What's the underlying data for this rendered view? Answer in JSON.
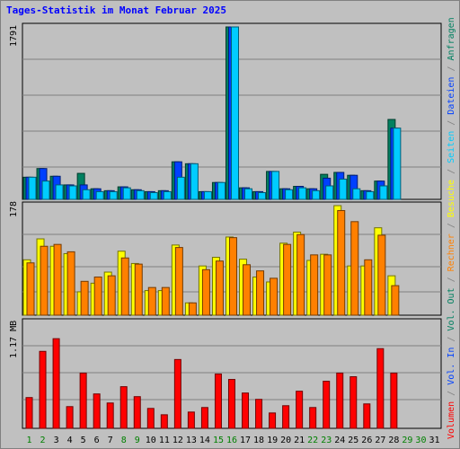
{
  "chart_data": [
    {
      "type": "bar",
      "title": "Tages-Statistik im Monat Februar 2025",
      "categories": [
        "1",
        "2",
        "3",
        "4",
        "5",
        "6",
        "7",
        "8",
        "9",
        "10",
        "11",
        "12",
        "13",
        "14",
        "15",
        "16",
        "17",
        "18",
        "19",
        "20",
        "21",
        "22",
        "23",
        "24",
        "25",
        "26",
        "27",
        "28",
        "29",
        "30",
        "31"
      ],
      "weekend_days": [
        "1",
        "2",
        "8",
        "9",
        "15",
        "16",
        "22",
        "23",
        "29",
        "30"
      ],
      "ymax_label": "1791",
      "series": [
        {
          "name": "Anfragen",
          "color": "#008060",
          "values": [
            230,
            320,
            240,
            150,
            270,
            110,
            90,
            130,
            100,
            80,
            90,
            390,
            370,
            80,
            175,
            1791,
            120,
            80,
            290,
            110,
            135,
            110,
            260,
            280,
            250,
            90,
            190,
            830,
            0,
            0,
            0
          ]
        },
        {
          "name": "Dateien",
          "color": "#0040ff",
          "values": [
            230,
            320,
            240,
            150,
            150,
            110,
            90,
            130,
            100,
            80,
            90,
            390,
            370,
            80,
            175,
            1791,
            120,
            80,
            290,
            110,
            135,
            110,
            220,
            280,
            250,
            90,
            190,
            740,
            0,
            0,
            0
          ]
        },
        {
          "name": "Seiten",
          "color": "#00ccff",
          "values": [
            230,
            190,
            150,
            140,
            100,
            80,
            80,
            120,
            90,
            70,
            80,
            230,
            370,
            80,
            175,
            1791,
            110,
            70,
            290,
            100,
            120,
            90,
            140,
            210,
            110,
            80,
            140,
            740,
            0,
            0,
            0
          ]
        }
      ]
    },
    {
      "type": "bar",
      "ymax_label": "178",
      "series": [
        {
          "name": "Besuche",
          "color": "#ffff00",
          "values": [
            90,
            124,
            112,
            100,
            38,
            52,
            70,
            104,
            84,
            40,
            40,
            114,
            20,
            80,
            94,
            127,
            91,
            62,
            54,
            117,
            135,
            89,
            99,
            178,
            80,
            80,
            142,
            64,
            0,
            0,
            0
          ]
        },
        {
          "name": "Rechner",
          "color": "#ff8000",
          "values": [
            85,
            112,
            115,
            103,
            55,
            62,
            64,
            93,
            83,
            45,
            45,
            110,
            20,
            74,
            88,
            126,
            82,
            72,
            60,
            115,
            131,
            98,
            98,
            170,
            152,
            90,
            130,
            48,
            0,
            0,
            0
          ]
        }
      ]
    },
    {
      "type": "bar",
      "ymax_label": "1.17 MB",
      "series": [
        {
          "name": "Volumen",
          "color": "#ff0000",
          "values": [
            0.34,
            0.85,
            0.99,
            0.24,
            0.61,
            0.38,
            0.28,
            0.46,
            0.35,
            0.22,
            0.15,
            0.76,
            0.18,
            0.23,
            0.6,
            0.54,
            0.39,
            0.32,
            0.17,
            0.25,
            0.41,
            0.23,
            0.52,
            0.61,
            0.57,
            0.27,
            0.88,
            0.61,
            0,
            0,
            0
          ]
        }
      ]
    }
  ],
  "legend": [
    {
      "label": "Volumen",
      "color": "#ff0000"
    },
    {
      "label": "Vol. In",
      "color": "#0040ff"
    },
    {
      "label": "Vol. Out",
      "color": "#008060"
    },
    {
      "label": "Rechner",
      "color": "#ff8000"
    },
    {
      "label": "Besuche",
      "color": "#ffff00"
    },
    {
      "label": "Seiten",
      "color": "#00ccff"
    },
    {
      "label": "Dateien",
      "color": "#0040ff"
    },
    {
      "label": "Anfragen",
      "color": "#008060"
    }
  ],
  "colors": {
    "background": "#c0c0c0",
    "panel_border": "#000000",
    "grid": "#808080",
    "title": "#0000ff",
    "weekday_label": "#000000",
    "weekend_label": "#008000",
    "separator": "#808080"
  }
}
